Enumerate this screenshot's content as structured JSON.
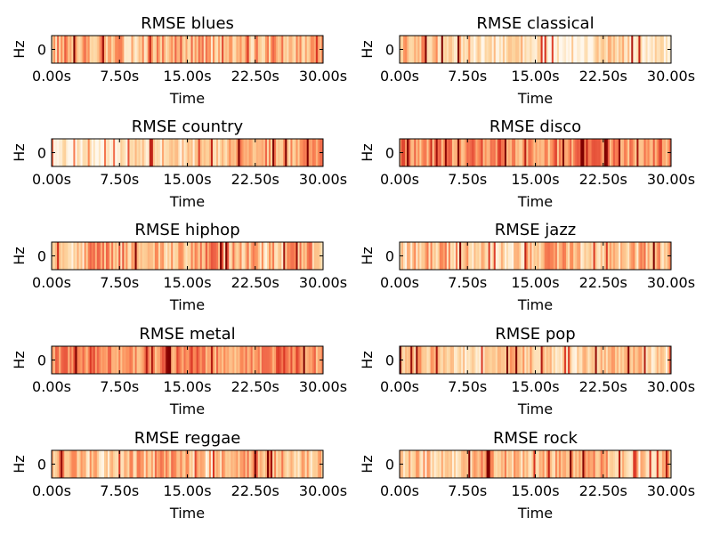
{
  "chart_data": [
    {
      "type": "heatmap",
      "title": "RMSE blues",
      "xlabel": "Time",
      "ylabel": "Hz",
      "ytick": "0",
      "xlim": [
        0,
        30
      ],
      "xticks": [
        "0.00s",
        "7.50s",
        "15.00s",
        "22.50s",
        "30.00s"
      ],
      "colormap": "OrRd",
      "profile": {
        "base": 0.45,
        "var": 0.28,
        "peak": 0.88,
        "low": 0.15
      }
    },
    {
      "type": "heatmap",
      "title": "RMSE classical",
      "xlabel": "Time",
      "ylabel": "Hz",
      "ytick": "0",
      "xlim": [
        0,
        30
      ],
      "xticks": [
        "0.00s",
        "7.50s",
        "15.00s",
        "22.50s",
        "30.00s"
      ],
      "colormap": "OrRd",
      "profile": {
        "base": 0.25,
        "var": 0.25,
        "peak": 0.9,
        "low": 0.05
      }
    },
    {
      "type": "heatmap",
      "title": "RMSE country",
      "xlabel": "Time",
      "ylabel": "Hz",
      "ytick": "0",
      "xlim": [
        0,
        30
      ],
      "xticks": [
        "0.00s",
        "7.50s",
        "15.00s",
        "22.50s",
        "30.00s"
      ],
      "colormap": "OrRd",
      "profile": {
        "base": 0.3,
        "var": 0.22,
        "peak": 0.85,
        "low": 0.05
      }
    },
    {
      "type": "heatmap",
      "title": "RMSE disco",
      "xlabel": "Time",
      "ylabel": "Hz",
      "ytick": "0",
      "xlim": [
        0,
        30
      ],
      "xticks": [
        "0.00s",
        "7.50s",
        "15.00s",
        "22.50s",
        "30.00s"
      ],
      "colormap": "OrRd",
      "profile": {
        "base": 0.62,
        "var": 0.22,
        "peak": 0.97,
        "low": 0.35
      }
    },
    {
      "type": "heatmap",
      "title": "RMSE hiphop",
      "xlabel": "Time",
      "ylabel": "Hz",
      "ytick": "0",
      "xlim": [
        0,
        30
      ],
      "xticks": [
        "0.00s",
        "7.50s",
        "15.00s",
        "22.50s",
        "30.00s"
      ],
      "colormap": "OrRd",
      "profile": {
        "base": 0.45,
        "var": 0.3,
        "peak": 0.92,
        "low": 0.12
      }
    },
    {
      "type": "heatmap",
      "title": "RMSE jazz",
      "xlabel": "Time",
      "ylabel": "Hz",
      "ytick": "0",
      "xlim": [
        0,
        30
      ],
      "xticks": [
        "0.00s",
        "7.50s",
        "15.00s",
        "22.50s",
        "30.00s"
      ],
      "colormap": "OrRd",
      "profile": {
        "base": 0.38,
        "var": 0.28,
        "peak": 0.9,
        "low": 0.08
      }
    },
    {
      "type": "heatmap",
      "title": "RMSE metal",
      "xlabel": "Time",
      "ylabel": "Hz",
      "ytick": "0",
      "xlim": [
        0,
        30
      ],
      "xticks": [
        "0.00s",
        "7.50s",
        "15.00s",
        "22.50s",
        "30.00s"
      ],
      "colormap": "OrRd",
      "profile": {
        "base": 0.6,
        "var": 0.2,
        "peak": 0.92,
        "low": 0.38
      }
    },
    {
      "type": "heatmap",
      "title": "RMSE pop",
      "xlabel": "Time",
      "ylabel": "Hz",
      "ytick": "0",
      "xlim": [
        0,
        30
      ],
      "xticks": [
        "0.00s",
        "7.50s",
        "15.00s",
        "22.50s",
        "30.00s"
      ],
      "colormap": "OrRd",
      "profile": {
        "base": 0.35,
        "var": 0.2,
        "peak": 0.88,
        "low": 0.1
      }
    },
    {
      "type": "heatmap",
      "title": "RMSE reggae",
      "xlabel": "Time",
      "ylabel": "Hz",
      "ytick": "0",
      "xlim": [
        0,
        30
      ],
      "xticks": [
        "0.00s",
        "7.50s",
        "15.00s",
        "22.50s",
        "30.00s"
      ],
      "colormap": "OrRd",
      "profile": {
        "base": 0.42,
        "var": 0.28,
        "peak": 0.88,
        "low": 0.1
      }
    },
    {
      "type": "heatmap",
      "title": "RMSE rock",
      "xlabel": "Time",
      "ylabel": "Hz",
      "ytick": "0",
      "xlim": [
        0,
        30
      ],
      "xticks": [
        "0.00s",
        "7.50s",
        "15.00s",
        "22.50s",
        "30.00s"
      ],
      "colormap": "OrRd",
      "profile": {
        "base": 0.42,
        "var": 0.25,
        "peak": 0.9,
        "low": 0.1
      }
    }
  ]
}
